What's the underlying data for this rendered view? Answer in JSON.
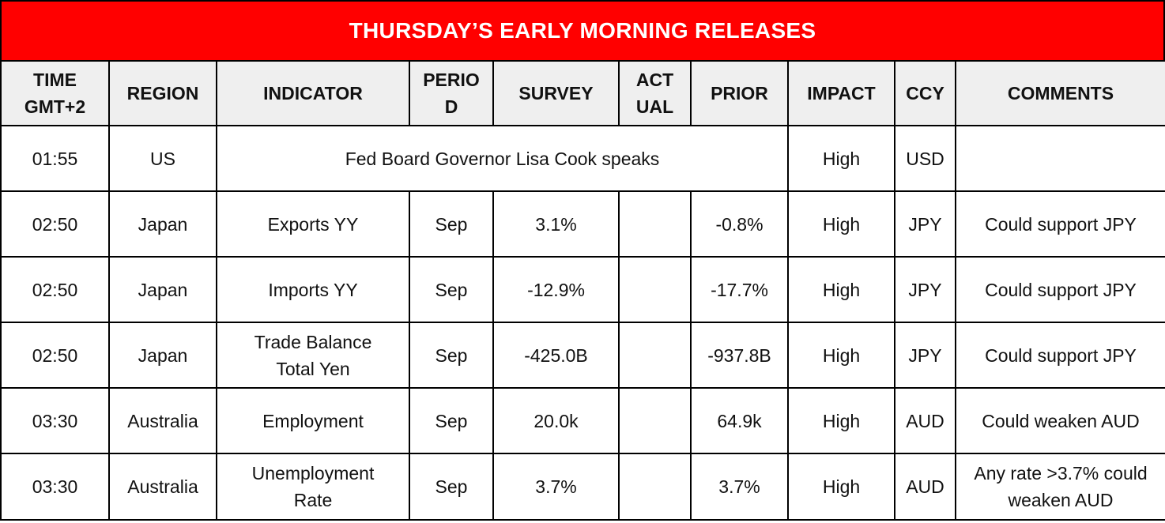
{
  "title": "THURSDAY’S EARLY MORNING RELEASES",
  "headers": {
    "time": [
      "TIME",
      "GMT+2"
    ],
    "region": "REGION",
    "indicator": "INDICATOR",
    "period": [
      "PERIO",
      "D"
    ],
    "survey": "SURVEY",
    "actual": [
      "ACT",
      "UAL"
    ],
    "prior": "PRIOR",
    "impact": "IMPACT",
    "ccy": "CCY",
    "comments": "COMMENTS"
  },
  "rows": [
    {
      "time": "01:55",
      "region": "US",
      "indicator_merged": "Fed Board Governor Lisa Cook speaks",
      "impact": "High",
      "ccy": "USD",
      "comments": ""
    },
    {
      "time": "02:50",
      "region": "Japan",
      "indicator": [
        "Exports YY"
      ],
      "period": "Sep",
      "survey": "3.1%",
      "actual": "",
      "prior": "-0.8%",
      "impact": "High",
      "ccy": "JPY",
      "comments": [
        "Could support JPY"
      ]
    },
    {
      "time": "02:50",
      "region": "Japan",
      "indicator": [
        "Imports YY"
      ],
      "period": "Sep",
      "survey": "-12.9%",
      "actual": "",
      "prior": "-17.7%",
      "impact": "High",
      "ccy": "JPY",
      "comments": [
        "Could support JPY"
      ]
    },
    {
      "time": "02:50",
      "region": "Japan",
      "indicator": [
        "Trade Balance",
        "Total Yen"
      ],
      "period": "Sep",
      "survey": "-425.0B",
      "actual": "",
      "prior": "-937.8B",
      "impact": "High",
      "ccy": "JPY",
      "comments": [
        "Could support JPY"
      ]
    },
    {
      "time": "03:30",
      "region": "Australia",
      "indicator": [
        "Employment"
      ],
      "period": "Sep",
      "survey": "20.0k",
      "actual": "",
      "prior": "64.9k",
      "impact": "High",
      "ccy": "AUD",
      "comments": [
        "Could weaken AUD"
      ]
    },
    {
      "time": "03:30",
      "region": "Australia",
      "indicator": [
        "Unemployment",
        "Rate"
      ],
      "period": "Sep",
      "survey": "3.7%",
      "actual": "",
      "prior": "3.7%",
      "impact": "High",
      "ccy": "AUD",
      "comments": [
        "Any rate >3.7% could",
        "weaken AUD"
      ]
    }
  ]
}
